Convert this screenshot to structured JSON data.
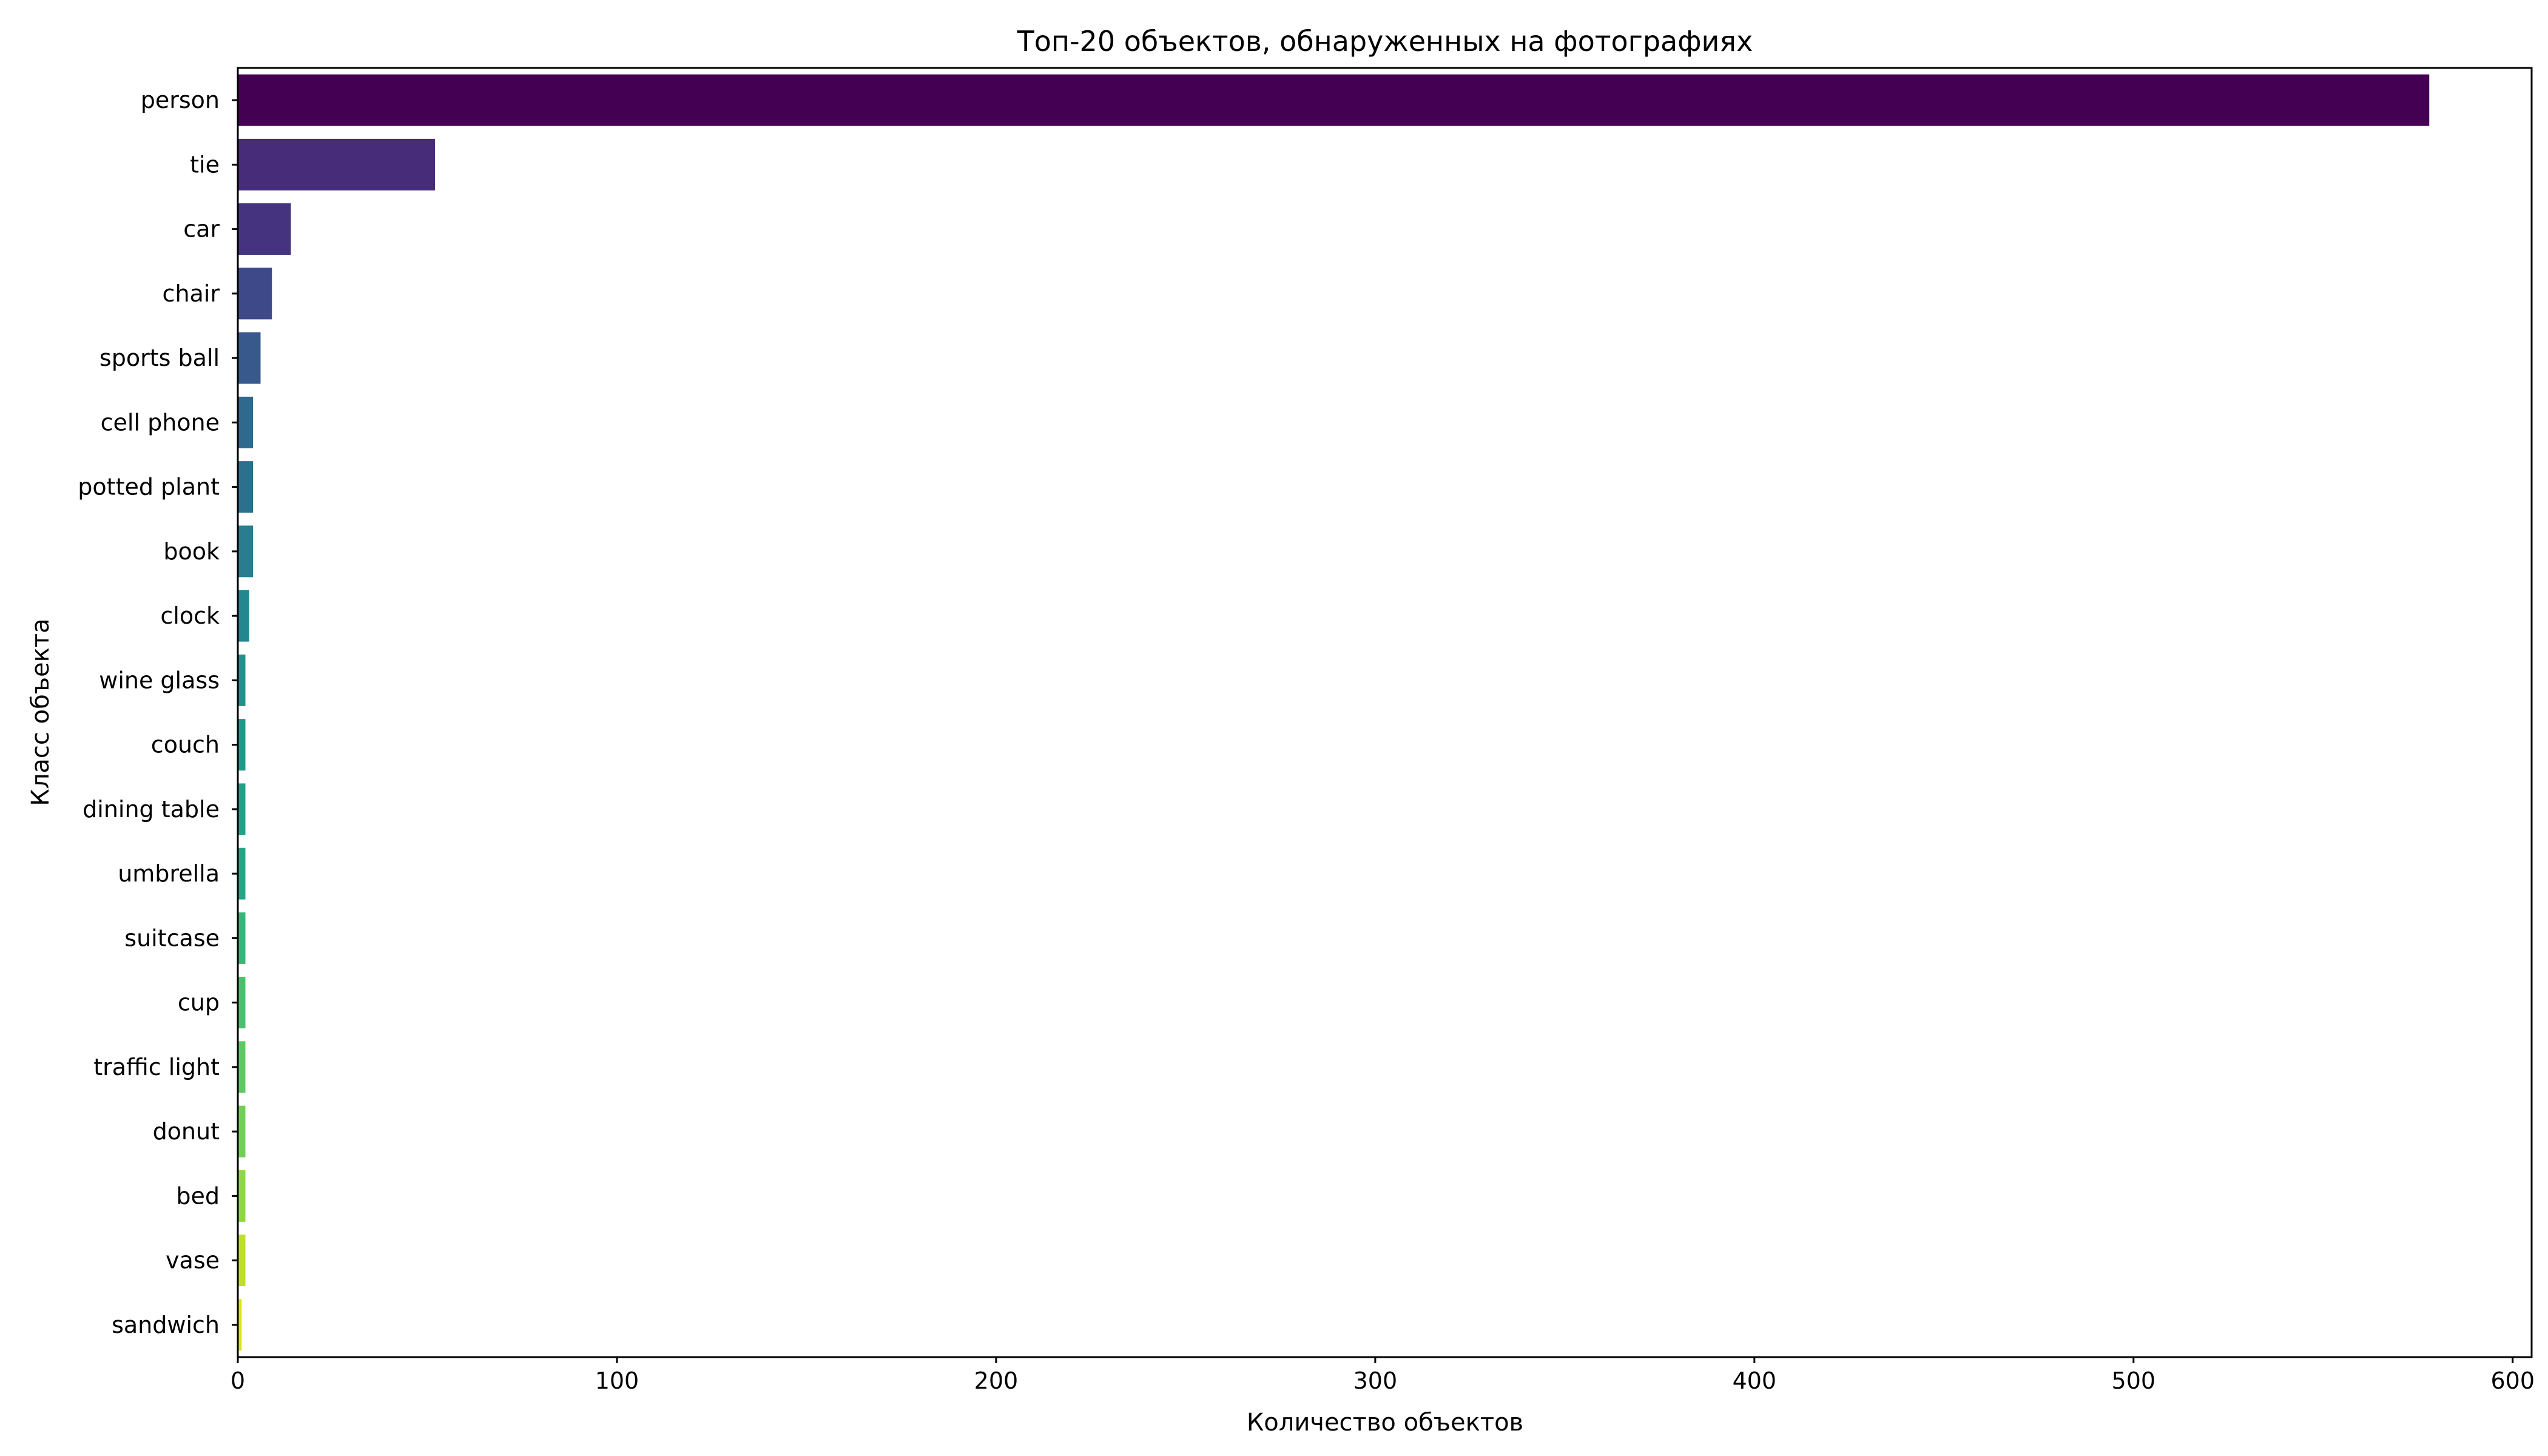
{
  "chart_data": {
    "type": "bar",
    "orientation": "horizontal",
    "title": "Топ-20 объектов, обнаруженных на фотографиях",
    "xlabel": "Количество объектов",
    "ylabel": "Класс объекта",
    "xlim": [
      0,
      605
    ],
    "xticks": [
      0,
      100,
      200,
      300,
      400,
      500,
      600
    ],
    "grid": false,
    "categories": [
      "person",
      "tie",
      "car",
      "chair",
      "sports ball",
      "cell phone",
      "potted plant",
      "book",
      "clock",
      "wine glass",
      "couch",
      "dining table",
      "umbrella",
      "suitcase",
      "cup",
      "traffic light",
      "donut",
      "bed",
      "vase",
      "sandwich"
    ],
    "values": [
      578,
      52,
      14,
      9,
      6,
      4,
      4,
      4,
      3,
      2,
      2,
      2,
      2,
      2,
      2,
      2,
      2,
      2,
      2,
      1
    ],
    "colors": [
      "#440154",
      "#472c7a",
      "#46337f",
      "#3e4989",
      "#38598c",
      "#31688e",
      "#2d708e",
      "#287d8e",
      "#24868e",
      "#21918c",
      "#1f9a8a",
      "#1fa187",
      "#22a785",
      "#35b779",
      "#48c16e",
      "#5ec962",
      "#70cf57",
      "#8fd744",
      "#bddf26",
      "#dae319"
    ]
  }
}
